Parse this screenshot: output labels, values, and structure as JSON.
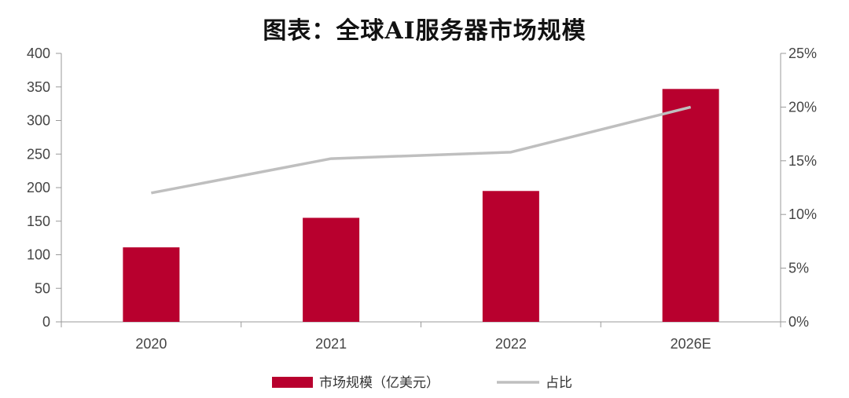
{
  "title": "图表：全球AI服务器市场规模",
  "chart_data": {
    "type": "bar",
    "categories": [
      "2020",
      "2021",
      "2022",
      "2026E"
    ],
    "series": [
      {
        "name": "市场规模（亿美元）",
        "type": "bar",
        "axis": "left",
        "values": [
          111,
          155,
          195,
          347
        ],
        "color": "#B8002E"
      },
      {
        "name": "占比",
        "type": "line",
        "axis": "right",
        "values": [
          12.0,
          15.2,
          15.8,
          20.0
        ],
        "color": "#BFBFBF"
      }
    ],
    "y_left": {
      "min": 0,
      "max": 400,
      "ticks": [
        "0",
        "50",
        "100",
        "150",
        "200",
        "250",
        "300",
        "350",
        "400"
      ]
    },
    "y_right": {
      "min": 0,
      "max": 25,
      "ticks": [
        "0%",
        "5%",
        "10%",
        "15%",
        "20%",
        "25%"
      ]
    },
    "grid": false,
    "legend_position": "bottom"
  }
}
